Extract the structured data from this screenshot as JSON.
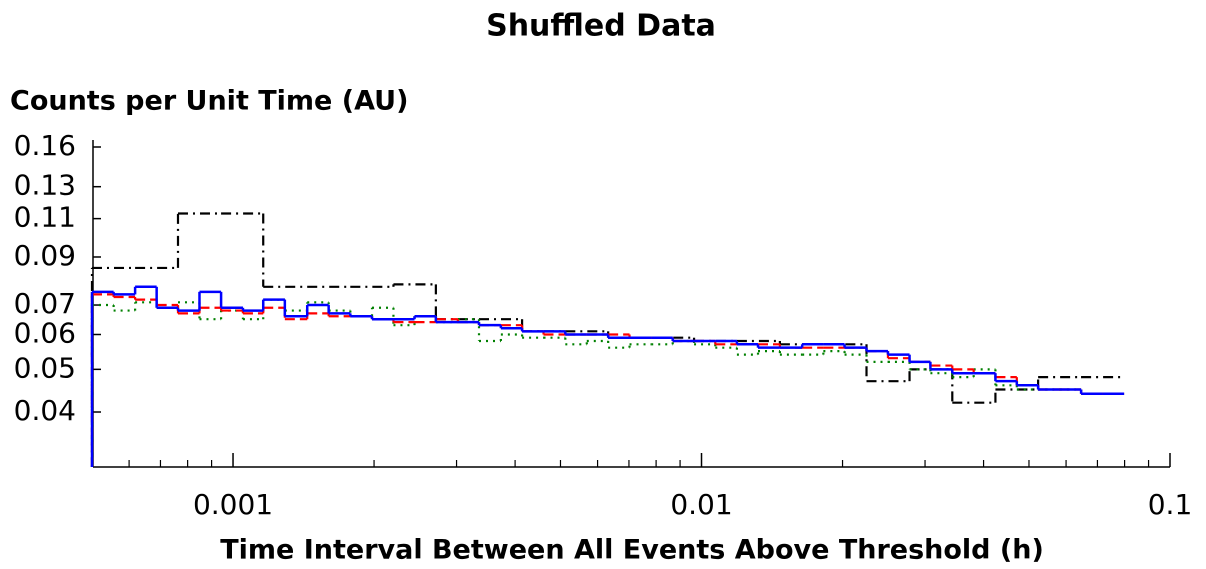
{
  "chart_data": {
    "type": "step",
    "title": "Shuffled Data",
    "ylabel": "Counts per Unit Time (AU)",
    "xlabel": "Time Interval Between All Events Above Threshold (h)",
    "xscale": "log",
    "yscale": "log",
    "xlim": [
      0.0005,
      0.1
    ],
    "ylim": [
      0.03,
      0.16
    ],
    "xticks": [
      0.001,
      0.01,
      0.1
    ],
    "yticks": [
      0.16,
      0.13,
      0.11,
      0.09,
      0.07,
      0.06,
      0.05,
      0.04
    ],
    "series": [
      {
        "color": "#000000",
        "linestyle": "dashdot",
        "bins": [
          0.0005,
          0.000618,
          0.000763,
          0.000943,
          0.00116,
          0.00144,
          0.00178,
          0.0022,
          0.00271,
          0.00335,
          0.00414,
          0.00512,
          0.00632,
          0.00781,
          0.00964,
          0.0119,
          0.0147,
          0.0182,
          0.0225,
          0.0278,
          0.0343,
          0.0424,
          0.0523,
          0.0646,
          0.0798
        ],
        "values": [
          0.085,
          0.085,
          0.113,
          0.113,
          0.077,
          0.077,
          0.077,
          0.078,
          0.065,
          0.065,
          0.061,
          0.061,
          0.059,
          0.059,
          0.058,
          0.058,
          0.057,
          0.057,
          0.047,
          0.05,
          0.042,
          0.045,
          0.048,
          0.048
        ]
      },
      {
        "color": "#008000",
        "linestyle": "dotted",
        "bins": [
          0.0005,
          0.000556,
          0.000618,
          0.000687,
          0.000763,
          0.000848,
          0.000943,
          0.00105,
          0.00116,
          0.00129,
          0.00144,
          0.0016,
          0.00178,
          0.00198,
          0.0022,
          0.00244,
          0.00271,
          0.00302,
          0.00335,
          0.00373,
          0.00414,
          0.0046,
          0.00512,
          0.00569,
          0.00632,
          0.00702,
          0.00781,
          0.00868,
          0.00964,
          0.0107,
          0.0119,
          0.0132,
          0.0147,
          0.0164,
          0.0182,
          0.0202,
          0.0225,
          0.025,
          0.0278,
          0.0308,
          0.0343,
          0.0381,
          0.0424,
          0.0471,
          0.0523,
          0.0582,
          0.0646,
          0.0718,
          0.0798
        ],
        "values": [
          0.07,
          0.068,
          0.071,
          0.069,
          0.071,
          0.065,
          0.068,
          0.065,
          0.072,
          0.068,
          0.071,
          0.068,
          0.066,
          0.069,
          0.063,
          0.066,
          0.064,
          0.065,
          0.058,
          0.06,
          0.059,
          0.059,
          0.057,
          0.058,
          0.056,
          0.057,
          0.057,
          0.058,
          0.057,
          0.056,
          0.054,
          0.055,
          0.054,
          0.054,
          0.055,
          0.054,
          0.052,
          0.052,
          0.05,
          0.049,
          0.048,
          0.05,
          0.046,
          0.045,
          0.045,
          0.045,
          0.044,
          0.044
        ]
      },
      {
        "color": "#ff0000",
        "linestyle": "dashed",
        "bins": [
          0.0005,
          0.000556,
          0.000618,
          0.000687,
          0.000763,
          0.000848,
          0.000943,
          0.00105,
          0.00116,
          0.00129,
          0.00144,
          0.0016,
          0.00178,
          0.00198,
          0.0022,
          0.00244,
          0.00271,
          0.00302,
          0.00335,
          0.00373,
          0.00414,
          0.0046,
          0.00512,
          0.00569,
          0.00632,
          0.00702,
          0.00781,
          0.00868,
          0.00964,
          0.0107,
          0.0119,
          0.0132,
          0.0147,
          0.0164,
          0.0182,
          0.0202,
          0.0225,
          0.025,
          0.0278,
          0.0308,
          0.0343,
          0.0381,
          0.0424,
          0.0471,
          0.0523,
          0.0582,
          0.0646,
          0.0718,
          0.0798
        ],
        "values": [
          0.074,
          0.073,
          0.072,
          0.07,
          0.067,
          0.069,
          0.068,
          0.067,
          0.069,
          0.065,
          0.067,
          0.066,
          0.066,
          0.065,
          0.064,
          0.064,
          0.065,
          0.064,
          0.063,
          0.063,
          0.061,
          0.06,
          0.06,
          0.06,
          0.06,
          0.059,
          0.059,
          0.058,
          0.058,
          0.057,
          0.057,
          0.057,
          0.056,
          0.056,
          0.056,
          0.056,
          0.055,
          0.053,
          0.052,
          0.051,
          0.05,
          0.049,
          0.048,
          0.046,
          0.045,
          0.045,
          0.044,
          0.044
        ]
      },
      {
        "color": "#0000ff",
        "linestyle": "solid",
        "bins": [
          0.0005,
          0.000556,
          0.000618,
          0.000687,
          0.000763,
          0.000848,
          0.000943,
          0.00105,
          0.00116,
          0.00129,
          0.00144,
          0.0016,
          0.00178,
          0.00198,
          0.0022,
          0.00244,
          0.00271,
          0.00302,
          0.00335,
          0.00373,
          0.00414,
          0.0046,
          0.00512,
          0.00569,
          0.00632,
          0.00702,
          0.00781,
          0.00868,
          0.00964,
          0.0107,
          0.0119,
          0.0132,
          0.0147,
          0.0164,
          0.0182,
          0.0202,
          0.0225,
          0.025,
          0.0278,
          0.0308,
          0.0343,
          0.0381,
          0.0424,
          0.0471,
          0.0523,
          0.0582,
          0.0646,
          0.0718,
          0.0798
        ],
        "values": [
          0.075,
          0.074,
          0.077,
          0.069,
          0.068,
          0.075,
          0.069,
          0.068,
          0.072,
          0.066,
          0.07,
          0.067,
          0.066,
          0.065,
          0.065,
          0.066,
          0.064,
          0.064,
          0.063,
          0.062,
          0.061,
          0.061,
          0.06,
          0.06,
          0.059,
          0.059,
          0.059,
          0.058,
          0.058,
          0.058,
          0.057,
          0.056,
          0.056,
          0.057,
          0.057,
          0.056,
          0.055,
          0.054,
          0.052,
          0.05,
          0.049,
          0.049,
          0.047,
          0.046,
          0.045,
          0.045,
          0.044,
          0.044
        ]
      }
    ]
  }
}
